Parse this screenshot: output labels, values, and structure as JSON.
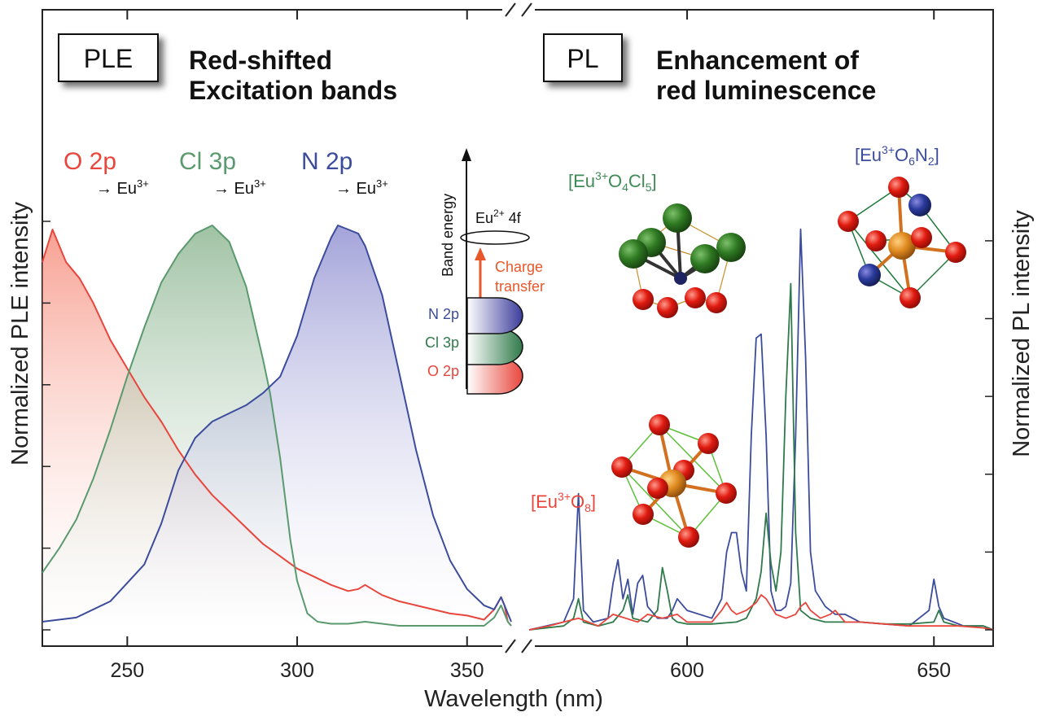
{
  "chart_data": {
    "type": "line",
    "xlabel": "Wavelength (nm)",
    "panels": [
      {
        "name": "PLE",
        "heading": [
          "Red-shifted",
          "Excitation bands"
        ],
        "ylabel": "Normalized PLE intensity",
        "xlim": [
          225,
          363
        ],
        "ylim": [
          0,
          1.0
        ],
        "xticks": [
          250,
          300,
          350
        ],
        "series": [
          {
            "name": "O 2p",
            "color": "#e8463c",
            "x": [
              225,
              228,
              232,
              236,
              240,
              245,
              250,
              255,
              260,
              265,
              270,
              275,
              280,
              285,
              290,
              295,
              300,
              305,
              310,
              315,
              318,
              320,
              322,
              325,
              330,
              335,
              340,
              345,
              350,
              355,
              358,
              360,
              361,
              362,
              363
            ],
            "y": [
              0.9,
              0.98,
              0.9,
              0.86,
              0.8,
              0.71,
              0.64,
              0.57,
              0.51,
              0.44,
              0.38,
              0.33,
              0.29,
              0.25,
              0.21,
              0.18,
              0.15,
              0.13,
              0.11,
              0.095,
              0.1,
              0.11,
              0.1,
              0.085,
              0.07,
              0.06,
              0.05,
              0.04,
              0.035,
              0.025,
              0.05,
              0.08,
              0.06,
              0.02,
              0.01
            ]
          },
          {
            "name": "Cl 3p",
            "color": "#5a9a6e",
            "x": [
              225,
              230,
              235,
              240,
              245,
              250,
              255,
              260,
              265,
              270,
              275,
              280,
              285,
              290,
              292,
              295,
              298,
              300,
              303,
              306,
              310,
              315,
              320,
              325,
              330,
              340,
              350,
              355,
              358,
              360,
              362,
              363
            ],
            "y": [
              0.14,
              0.2,
              0.27,
              0.37,
              0.49,
              0.62,
              0.74,
              0.85,
              0.92,
              0.97,
              0.99,
              0.95,
              0.84,
              0.66,
              0.58,
              0.42,
              0.22,
              0.12,
              0.04,
              0.02,
              0.015,
              0.015,
              0.02,
              0.015,
              0.01,
              0.01,
              0.01,
              0.01,
              0.03,
              0.06,
              0.02,
              0.01
            ]
          },
          {
            "name": "N 2p",
            "color": "#3c4c9c",
            "x": [
              225,
              235,
              245,
              255,
              260,
              265,
              270,
              275,
              280,
              285,
              290,
              295,
              300,
              305,
              310,
              312,
              315,
              318,
              320,
              325,
              330,
              335,
              340,
              345,
              350,
              355,
              358,
              360,
              362,
              363
            ],
            "y": [
              0.02,
              0.03,
              0.07,
              0.16,
              0.26,
              0.39,
              0.47,
              0.51,
              0.53,
              0.55,
              0.58,
              0.62,
              0.72,
              0.86,
              0.96,
              0.99,
              0.98,
              0.97,
              0.94,
              0.82,
              0.63,
              0.44,
              0.28,
              0.17,
              0.1,
              0.06,
              0.05,
              0.08,
              0.04,
              0.02
            ]
          }
        ]
      },
      {
        "name": "PL",
        "heading": [
          "Enhancement of",
          "red luminescence"
        ],
        "ylabel": "Normalized PL intensity",
        "xlim": [
          568,
          662
        ],
        "ylim": [
          0,
          1.05
        ],
        "xticks": [
          600,
          650
        ],
        "series": [
          {
            "name": "[Eu3+O6N2]",
            "color": "#3c4c9c",
            "x": [
              568,
              575,
              577,
              578,
              579,
              581,
              584,
              585,
              586,
              587,
              588,
              589,
              590,
              591,
              592,
              594,
              596,
              597,
              598,
              600,
              605,
              607,
              608,
              609,
              610,
              611,
              612,
              613,
              614,
              615,
              616,
              617,
              618,
              619,
              620,
              621,
              622,
              623,
              624,
              625,
              626,
              627,
              628,
              629,
              630,
              632,
              635,
              640,
              645,
              649,
              650,
              651,
              652,
              654,
              656,
              660,
              662
            ],
            "y": [
              0.0,
              0.02,
              0.08,
              0.35,
              0.05,
              0.02,
              0.03,
              0.12,
              0.18,
              0.08,
              0.13,
              0.04,
              0.12,
              0.14,
              0.06,
              0.03,
              0.03,
              0.05,
              0.08,
              0.05,
              0.03,
              0.08,
              0.2,
              0.25,
              0.25,
              0.15,
              0.1,
              0.5,
              0.75,
              0.76,
              0.5,
              0.1,
              0.05,
              0.05,
              0.06,
              0.12,
              0.5,
              1.03,
              0.7,
              0.2,
              0.1,
              0.08,
              0.06,
              0.05,
              0.04,
              0.04,
              0.02,
              0.015,
              0.01,
              0.05,
              0.13,
              0.06,
              0.03,
              0.02,
              0.01,
              0.01,
              0.0
            ]
          },
          {
            "name": "[Eu3+O4Cl5]",
            "color": "#2f7a4a",
            "x": [
              568,
              575,
              577,
              578,
              579,
              582,
              585,
              587,
              588,
              589,
              592,
              594,
              595,
              596,
              597,
              598,
              600,
              605,
              610,
              612,
              614,
              615,
              616,
              617,
              618,
              619,
              620,
              621,
              622,
              623,
              625,
              628,
              630,
              635,
              640,
              645,
              650,
              651,
              652,
              655,
              660,
              662
            ],
            "y": [
              0.0,
              0.01,
              0.03,
              0.08,
              0.02,
              0.01,
              0.02,
              0.05,
              0.09,
              0.03,
              0.02,
              0.05,
              0.16,
              0.1,
              0.03,
              0.02,
              0.015,
              0.015,
              0.02,
              0.03,
              0.08,
              0.15,
              0.3,
              0.17,
              0.1,
              0.2,
              0.6,
              0.89,
              0.25,
              0.05,
              0.03,
              0.02,
              0.02,
              0.02,
              0.015,
              0.015,
              0.02,
              0.05,
              0.02,
              0.01,
              0.01,
              0.0
            ]
          },
          {
            "name": "[Eu3+O8]",
            "color": "#e8463c",
            "x": [
              568,
              572,
              575,
              578,
              582,
              585,
              590,
              592,
              595,
              598,
              600,
              603,
              605,
              607,
              608,
              609,
              610,
              612,
              614,
              615,
              616,
              618,
              620,
              622,
              623,
              624,
              625,
              627,
              629,
              630,
              632,
              635,
              640,
              645,
              650,
              655,
              660,
              662
            ],
            "y": [
              0.0,
              0.01,
              0.02,
              0.03,
              0.01,
              0.04,
              0.02,
              0.04,
              0.03,
              0.04,
              0.02,
              0.02,
              0.02,
              0.05,
              0.07,
              0.05,
              0.04,
              0.05,
              0.07,
              0.09,
              0.08,
              0.04,
              0.03,
              0.04,
              0.06,
              0.07,
              0.05,
              0.03,
              0.04,
              0.05,
              0.02,
              0.02,
              0.015,
              0.01,
              0.01,
              0.01,
              0.005,
              0.0
            ]
          }
        ]
      }
    ]
  },
  "ple_box": "PLE",
  "pl_box": "PL",
  "ple_heading_1": "Red-shifted",
  "ple_heading_2": "Excitation bands",
  "pl_heading_1": "Enhancement of",
  "pl_heading_2": "red luminescence",
  "x_axis_title": "Wavelength (nm)",
  "ple_axis_title": "Normalized PLE intensity",
  "pl_axis_title": "Normalized PL intensity",
  "transitions": [
    {
      "band": "O 2p",
      "arrow": "→ Eu",
      "sup": "3+",
      "color": "#e8463c"
    },
    {
      "band": "Cl 3p",
      "arrow": "→ Eu",
      "sup": "3+",
      "color": "#5a9a6e"
    },
    {
      "band": "N 2p",
      "arrow": "→ Eu",
      "sup": "3+",
      "color": "#3c4c9c"
    }
  ],
  "diagram": {
    "axis_label": "Band energy",
    "level_label": "Eu",
    "level_sup": "2+",
    "level_suffix": " 4f",
    "transfer_1": "Charge",
    "transfer_2": "transfer",
    "bands": [
      {
        "label": "N 2p",
        "color": "#3c4c9c"
      },
      {
        "label": "Cl 3p",
        "color": "#2f7a4a"
      },
      {
        "label": "O 2p",
        "color": "#e8463c"
      }
    ],
    "transfer_color": "#e8572a"
  },
  "sites": [
    {
      "pre": "[Eu",
      "sup": "3+",
      "mid": "O",
      "sub1": "4",
      "mid2": "Cl",
      "sub2": "5",
      "post": "]",
      "color": "#3f8a55"
    },
    {
      "pre": "[Eu",
      "sup": "3+",
      "mid": "O",
      "sub1": "6",
      "mid2": "N",
      "sub2": "2",
      "post": "]",
      "color": "#3c4c9c"
    },
    {
      "pre": "[Eu",
      "sup": "3+",
      "mid": "O",
      "sub1": "8",
      "mid2": "",
      "sub2": "",
      "post": "]",
      "color": "#e8463c"
    }
  ]
}
